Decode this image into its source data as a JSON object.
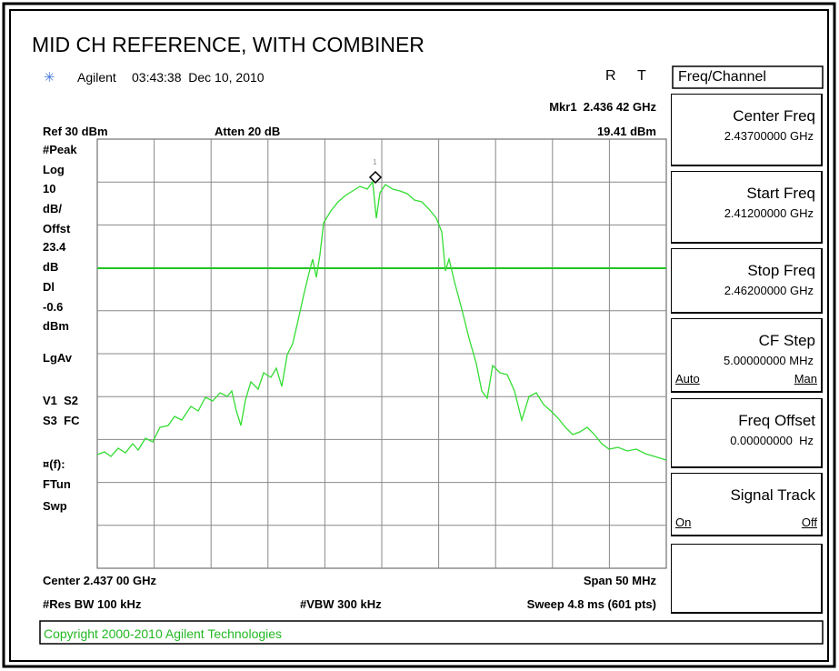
{
  "header": {
    "title": "MID CH REFERENCE, WITH COMBINER",
    "brand": "Agilent",
    "timestamp": "03:43:38  Dec 10, 2010",
    "status": [
      "R",
      "T"
    ]
  },
  "screen": {
    "ref": "Ref 30 dBm",
    "atten": "Atten 20 dB",
    "marker": "Mkr1  2.436 42 GHz",
    "marker_level": "19.41 dBm",
    "left_labels": [
      "#Peak",
      "Log",
      "10",
      "dB/",
      "Offst",
      "23.4",
      "dB",
      "Dl",
      "-0.6",
      "dBm",
      "LgAv",
      "V1  S2",
      "S3  FC",
      "¤(f):",
      "FTun",
      "Swp"
    ],
    "marker_number": "1",
    "center": "Center 2.437 00 GHz",
    "span": "Span 50 MHz",
    "res_bw": "#Res BW 100 kHz",
    "vbw": "#VBW 300 kHz",
    "sweep": "Sweep 4.8 ms (601 pts)"
  },
  "menu": {
    "title": "Freq/Channel",
    "softkeys": [
      {
        "label": "Center Freq",
        "value": "2.43700000 GHz"
      },
      {
        "label": "Start Freq",
        "value": "2.41200000 GHz"
      },
      {
        "label": "Stop Freq",
        "value": "2.46200000 GHz"
      },
      {
        "label": "CF Step",
        "value": "5.00000000 MHz",
        "options": [
          "Auto",
          "Man"
        ]
      },
      {
        "label": "Freq Offset",
        "value": "0.00000000  Hz"
      },
      {
        "label": "Signal Track",
        "options": [
          "On",
          "Off"
        ]
      }
    ]
  },
  "footer": {
    "copyright": "Copyright 2000-2010 Agilent Technologies"
  }
}
